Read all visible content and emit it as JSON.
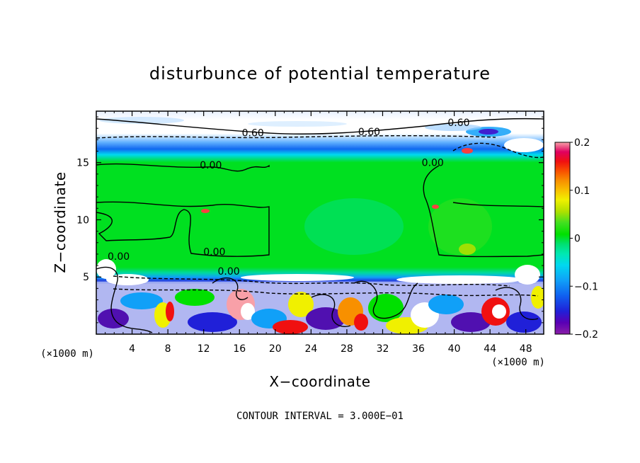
{
  "chart_data": {
    "type": "heatmap",
    "title": "disturbunce of potential temperature",
    "xlabel": "X−coordinate",
    "ylabel": "Z−coordinate",
    "x_unit": "(×1000 m)",
    "y_unit": "(×1000 m)",
    "xlim": [
      0,
      50
    ],
    "ylim": [
      0,
      19.5
    ],
    "x_ticks": [
      4,
      8,
      12,
      16,
      20,
      24,
      28,
      32,
      36,
      40,
      44,
      48
    ],
    "x_tick_labels": [
      "4",
      "8",
      "12",
      "16",
      "20",
      "24",
      "28",
      "32",
      "36",
      "40",
      "44",
      "48"
    ],
    "y_ticks": [
      5,
      10,
      15
    ],
    "y_tick_labels": [
      "5",
      "10",
      "15"
    ],
    "colorbar": {
      "range": [
        -0.2,
        0.2
      ],
      "ticks": [
        0.2,
        0.1,
        0,
        -0.1,
        -0.2
      ],
      "tick_labels": [
        "0.2",
        "0.1",
        "0",
        "−0.1",
        "−0.2"
      ],
      "colors": [
        "#8a1ea8",
        "#5a00b4",
        "#2020d8",
        "#1060f0",
        "#10a0f8",
        "#00d8f0",
        "#00e8b0",
        "#00e070",
        "#00e000",
        "#40e020",
        "#b0e000",
        "#f0f000",
        "#f8c000",
        "#f89000",
        "#f85000",
        "#f01010",
        "#e00060",
        "#f8a0a8"
      ]
    },
    "contour_labels": [
      {
        "x": 14.8,
        "z": 5.5,
        "text": "0.00"
      },
      {
        "x": 2.5,
        "z": 6.8,
        "text": "0.00"
      },
      {
        "x": 13.2,
        "z": 7.2,
        "text": "0.00"
      },
      {
        "x": 12.8,
        "z": 14.8,
        "text": "0.00"
      },
      {
        "x": 37.6,
        "z": 15.0,
        "text": "0.00"
      },
      {
        "x": 17.5,
        "z": 17.6,
        "text": "0.60"
      },
      {
        "x": 30.5,
        "z": 17.7,
        "text": "0.60"
      },
      {
        "x": 40.5,
        "z": 18.5,
        "text": "0.60"
      }
    ],
    "note": "CONTOUR INTERVAL = 3.000E−01"
  }
}
